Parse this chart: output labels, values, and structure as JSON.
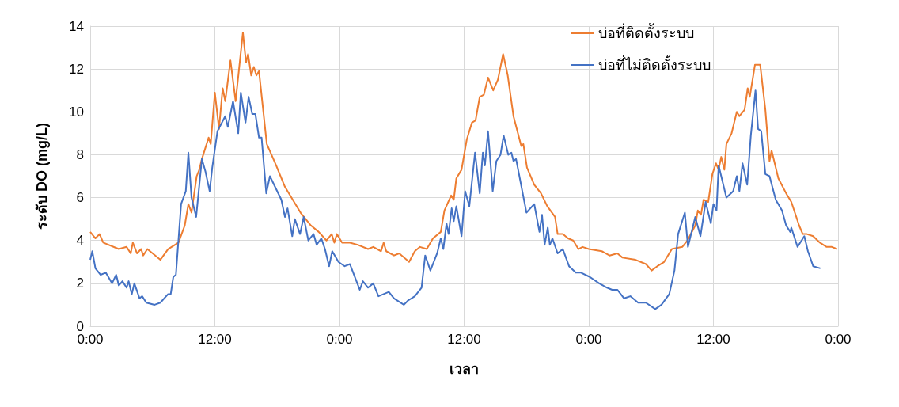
{
  "chart_data": {
    "type": "line",
    "xlabel": "เวลา",
    "ylabel": "ระดับ DO (mg/L)",
    "xlim": [
      "--01-01T00:00",
      "--01-04T00:00"
    ],
    "xticks": [
      {
        "value": "--01-01T00:00",
        "label": "0:00"
      },
      {
        "value": "--01-01T12:00",
        "label": "12:00"
      },
      {
        "value": "--01-02T00:00",
        "label": "0:00"
      },
      {
        "value": "--01-02T12:00",
        "label": "12:00"
      },
      {
        "value": "--01-03T00:00",
        "label": "0:00"
      },
      {
        "value": "--01-03T12:00",
        "label": "12:00"
      },
      {
        "value": "--01-04T00:00",
        "label": "0:00"
      }
    ],
    "ylim": [
      0,
      14
    ],
    "yticks": [
      0,
      2,
      4,
      6,
      8,
      10,
      12,
      14
    ],
    "grid": true,
    "legend": "top right",
    "marker": "none",
    "line_style": "solid",
    "series": [
      {
        "name": "บ่อที่ติดตั้งระบบ",
        "color": "#ed7d31",
        "x": [
          "--01-01T00:00",
          "--01-01T00:30",
          "--01-01T00:54",
          "--01-01T01:15",
          "--01-01T02:45",
          "--01-01T03:30",
          "--01-01T03:54",
          "--01-01T04:06",
          "--01-01T04:30",
          "--01-01T04:54",
          "--01-01T05:06",
          "--01-01T05:30",
          "--01-01T06:45",
          "--01-01T07:30",
          "--01-01T08:30",
          "--01-01T09:06",
          "--01-01T09:27",
          "--01-01T09:45",
          "--01-01T10:15",
          "--01-01T10:30",
          "--01-01T10:45",
          "--01-01T11:24",
          "--01-01T11:36",
          "--01-01T12:00",
          "--01-01T12:24",
          "--01-01T12:45",
          "--01-01T13:00",
          "--01-01T13:30",
          "--01-01T14:00",
          "--01-01T14:42",
          "--01-01T15:00",
          "--01-01T15:12",
          "--01-01T15:30",
          "--01-01T15:45",
          "--01-01T16:00",
          "--01-01T16:15",
          "--01-01T17:00",
          "--01-01T17:54",
          "--01-01T18:45",
          "--01-01T19:30",
          "--01-01T20:15",
          "--01-01T21:15",
          "--01-01T22:00",
          "--01-01T22:45",
          "--01-01T23:15",
          "--01-01T23:30",
          "--01-01T23:45",
          "--01-02T00:15",
          "--01-02T01:00",
          "--01-02T01:45",
          "--01-02T02:45",
          "--01-02T03:15",
          "--01-02T04:00",
          "--01-02T04:15",
          "--01-02T04:30",
          "--01-02T05:15",
          "--01-02T05:45",
          "--01-02T06:42",
          "--01-02T07:15",
          "--01-02T07:45",
          "--01-02T08:24",
          "--01-02T09:00",
          "--01-02T09:45",
          "--01-02T10:06",
          "--01-02T10:45",
          "--01-02T11:00",
          "--01-02T11:15",
          "--01-02T11:45",
          "--01-02T12:15",
          "--01-02T12:45",
          "--01-02T13:06",
          "--01-02T13:30",
          "--01-02T13:54",
          "--01-02T14:18",
          "--01-02T14:48",
          "--01-02T15:15",
          "--01-02T15:45",
          "--01-02T16:12",
          "--01-02T16:45",
          "--01-02T17:30",
          "--01-02T17:42",
          "--01-02T18:03",
          "--01-02T18:45",
          "--01-02T19:24",
          "--01-02T20:00",
          "--01-02T20:45",
          "--01-02T21:00",
          "--01-02T21:30",
          "--01-02T22:00",
          "--01-02T22:30",
          "--01-02T23:00",
          "--01-02T23:24",
          "--01-03T00:00",
          "--01-03T01:15",
          "--01-03T02:00",
          "--01-03T02:45",
          "--01-03T03:15",
          "--01-03T04:30",
          "--01-03T05:30",
          "--01-03T06:03",
          "--01-03T06:36",
          "--01-03T07:15",
          "--01-03T08:00",
          "--01-03T09:00",
          "--01-03T09:30",
          "--01-03T10:15",
          "--01-03T10:30",
          "--01-03T10:48",
          "--01-03T11:03",
          "--01-03T11:30",
          "--01-03T11:54",
          "--01-03T12:15",
          "--01-03T12:30",
          "--01-03T12:45",
          "--01-03T13:03",
          "--01-03T13:15",
          "--01-03T13:45",
          "--01-03T14:15",
          "--01-03T14:30",
          "--01-03T15:00",
          "--01-03T15:18",
          "--01-03T15:30",
          "--01-03T16:00",
          "--01-03T16:30",
          "--01-03T17:00",
          "--01-03T17:24",
          "--01-03T17:36",
          "--01-03T18:15",
          "--01-03T19:00",
          "--01-03T19:30",
          "--01-03T20:15",
          "--01-03T20:36",
          "--01-03T21:00",
          "--01-03T21:36",
          "--01-03T22:15",
          "--01-03T22:54",
          "--01-03T23:24",
          "--01-03T23:54"
        ],
        "values": [
          4.4,
          4.1,
          4.3,
          3.9,
          3.6,
          3.7,
          3.4,
          3.9,
          3.4,
          3.6,
          3.3,
          3.6,
          3.1,
          3.6,
          3.9,
          4.7,
          5.7,
          5.3,
          7.0,
          7.3,
          7.8,
          8.8,
          8.5,
          10.9,
          9.2,
          11.1,
          10.5,
          12.4,
          10.5,
          13.7,
          12.3,
          12.7,
          11.7,
          12.1,
          11.7,
          11.9,
          8.5,
          7.5,
          6.5,
          5.9,
          5.3,
          4.7,
          4.4,
          4.0,
          4.3,
          3.9,
          4.3,
          3.9,
          3.9,
          3.8,
          3.6,
          3.7,
          3.5,
          3.9,
          3.5,
          3.3,
          3.4,
          3.0,
          3.5,
          3.7,
          3.6,
          4.1,
          4.4,
          5.4,
          6.1,
          5.9,
          6.9,
          7.3,
          8.7,
          9.5,
          9.6,
          10.7,
          10.8,
          11.6,
          11.0,
          11.5,
          12.7,
          11.7,
          9.8,
          8.4,
          8.5,
          7.4,
          6.6,
          6.2,
          5.6,
          5.1,
          4.3,
          4.3,
          4.1,
          4.0,
          3.6,
          3.7,
          3.6,
          3.5,
          3.3,
          3.4,
          3.2,
          3.1,
          2.9,
          2.6,
          2.8,
          3.0,
          3.6,
          3.7,
          4.0,
          4.7,
          5.4,
          5.2,
          5.9,
          5.8,
          7.1,
          7.6,
          7.3,
          7.9,
          7.3,
          8.5,
          9.0,
          10.0,
          9.8,
          10.1,
          11.1,
          10.7,
          12.2,
          12.2,
          10.1,
          7.7,
          8.2,
          6.9,
          6.2,
          5.8,
          4.7,
          4.3,
          4.3,
          4.2,
          3.9,
          3.7,
          3.7,
          3.6
        ]
      },
      {
        "name": "บ่อที่ไม่ติดตั้งระบบ",
        "color": "#4472c4",
        "x": [
          "--01-01T00:00",
          "--01-01T00:12",
          "--01-01T00:30",
          "--01-01T01:00",
          "--01-01T01:30",
          "--01-01T02:06",
          "--01-01T02:30",
          "--01-01T02:45",
          "--01-01T03:06",
          "--01-01T03:30",
          "--01-01T03:42",
          "--01-01T04:00",
          "--01-01T04:15",
          "--01-01T04:45",
          "--01-01T05:00",
          "--01-01T05:24",
          "--01-01T06:12",
          "--01-01T06:45",
          "--01-01T07:30",
          "--01-01T07:45",
          "--01-01T08:00",
          "--01-01T08:15",
          "--01-01T08:45",
          "--01-01T09:12",
          "--01-01T09:27",
          "--01-01T09:45",
          "--01-01T10:12",
          "--01-01T10:45",
          "--01-01T11:06",
          "--01-01T11:30",
          "--01-01T11:45",
          "--01-01T12:15",
          "--01-01T13:00",
          "--01-01T13:15",
          "--01-01T13:45",
          "--01-01T14:15",
          "--01-01T14:30",
          "--01-01T14:57",
          "--01-01T15:15",
          "--01-01T15:36",
          "--01-01T15:54",
          "--01-01T16:15",
          "--01-01T16:30",
          "--01-01T16:57",
          "--01-01T17:18",
          "--01-01T17:54",
          "--01-01T18:24",
          "--01-01T18:45",
          "--01-01T19:00",
          "--01-01T19:27",
          "--01-01T19:42",
          "--01-01T20:12",
          "--01-01T20:33",
          "--01-01T21:00",
          "--01-01T21:30",
          "--01-01T21:48",
          "--01-01T22:15",
          "--01-01T22:36",
          "--01-01T23:00",
          "--01-01T23:18",
          "--01-01T23:54",
          "--01-02T00:30",
          "--01-02T01:00",
          "--01-02T01:24",
          "--01-02T01:57",
          "--01-02T02:15",
          "--01-02T02:45",
          "--01-02T03:15",
          "--01-02T03:45",
          "--01-02T04:45",
          "--01-02T05:15",
          "--01-02T06:12",
          "--01-02T06:36",
          "--01-02T07:15",
          "--01-02T07:54",
          "--01-02T08:15",
          "--01-02T08:45",
          "--01-02T09:24",
          "--01-02T09:45",
          "--01-02T10:00",
          "--01-02T10:18",
          "--01-02T10:30",
          "--01-02T10:48",
          "--01-02T11:00",
          "--01-02T11:15",
          "--01-02T11:45",
          "--01-02T12:06",
          "--01-02T12:30",
          "--01-02T13:03",
          "--01-02T13:30",
          "--01-02T13:48",
          "--01-02T14:00",
          "--01-02T14:18",
          "--01-02T14:45",
          "--01-02T15:06",
          "--01-02T15:30",
          "--01-02T15:48",
          "--01-02T16:15",
          "--01-02T16:33",
          "--01-02T16:45",
          "--01-02T17:00",
          "--01-02T18:00",
          "--01-02T18:45",
          "--01-02T19:15",
          "--01-02T19:30",
          "--01-02T19:45",
          "--01-02T20:03",
          "--01-02T20:15",
          "--01-02T20:30",
          "--01-02T21:00",
          "--01-02T21:30",
          "--01-02T22:06",
          "--01-02T22:45",
          "--01-02T23:15",
          "--01-03T00:06",
          "--01-03T01:00",
          "--01-03T01:45",
          "--01-03T02:15",
          "--01-03T02:45",
          "--01-03T03:24",
          "--01-03T04:00",
          "--01-03T04:45",
          "--01-03T05:30",
          "--01-03T06:24",
          "--01-03T07:00",
          "--01-03T07:45",
          "--01-03T08:15",
          "--01-03T08:36",
          "--01-03T09:15",
          "--01-03T09:33",
          "--01-03T10:15",
          "--01-03T10:45",
          "--01-03T11:15",
          "--01-03T11:45",
          "--01-03T12:00",
          "--01-03T12:18",
          "--01-03T12:30",
          "--01-03T13:15",
          "--01-03T13:54",
          "--01-03T14:15",
          "--01-03T14:30",
          "--01-03T14:48",
          "--01-03T15:15",
          "--01-03T15:36",
          "--01-03T16:03",
          "--01-03T16:18",
          "--01-03T16:36",
          "--01-03T17:00",
          "--01-03T17:24",
          "--01-03T18:00",
          "--01-03T18:36",
          "--01-03T19:00",
          "--01-03T19:24",
          "--01-03T19:30",
          "--01-03T20:06",
          "--01-03T20:45",
          "--01-03T21:06",
          "--01-03T21:36",
          "--01-03T22:18"
        ],
        "values": [
          3.1,
          3.5,
          2.7,
          2.4,
          2.5,
          2.0,
          2.4,
          1.9,
          2.1,
          1.8,
          2.1,
          1.5,
          2.0,
          1.3,
          1.4,
          1.1,
          1.0,
          1.1,
          1.5,
          1.5,
          2.3,
          2.4,
          5.7,
          6.3,
          8.1,
          6.0,
          5.1,
          7.8,
          7.2,
          6.3,
          7.4,
          9.1,
          9.8,
          9.3,
          10.5,
          9.0,
          10.9,
          9.5,
          10.7,
          9.9,
          9.9,
          8.8,
          8.8,
          6.2,
          7.0,
          6.4,
          5.9,
          5.1,
          5.5,
          4.2,
          5.0,
          4.3,
          5.1,
          4.0,
          4.3,
          3.8,
          4.1,
          3.6,
          2.8,
          3.5,
          3.0,
          2.8,
          2.9,
          2.4,
          1.7,
          2.1,
          1.8,
          2.0,
          1.4,
          1.6,
          1.3,
          1.0,
          1.2,
          1.4,
          1.8,
          3.3,
          2.6,
          3.4,
          4.1,
          3.6,
          4.8,
          4.3,
          5.5,
          4.9,
          5.6,
          4.2,
          6.3,
          5.6,
          8.1,
          6.2,
          8.1,
          7.5,
          9.1,
          6.3,
          7.7,
          8.0,
          8.9,
          8.0,
          8.1,
          7.7,
          7.8,
          5.3,
          5.7,
          4.4,
          5.2,
          3.8,
          4.6,
          3.8,
          4.1,
          3.4,
          3.6,
          2.8,
          2.5,
          2.5,
          2.3,
          2.0,
          1.8,
          1.7,
          1.7,
          1.3,
          1.4,
          1.1,
          1.1,
          0.8,
          1.0,
          1.5,
          2.6,
          4.3,
          5.3,
          3.7,
          5.1,
          4.2,
          5.8,
          4.8,
          5.7,
          5.4,
          7.5,
          6.0,
          6.3,
          7.0,
          6.3,
          7.6,
          6.6,
          8.9,
          11.0,
          9.2,
          9.1,
          7.1,
          7.0,
          5.9,
          5.4,
          4.7,
          4.4,
          4.6,
          3.7,
          4.2,
          3.5,
          2.8,
          2.7
        ]
      }
    ]
  }
}
